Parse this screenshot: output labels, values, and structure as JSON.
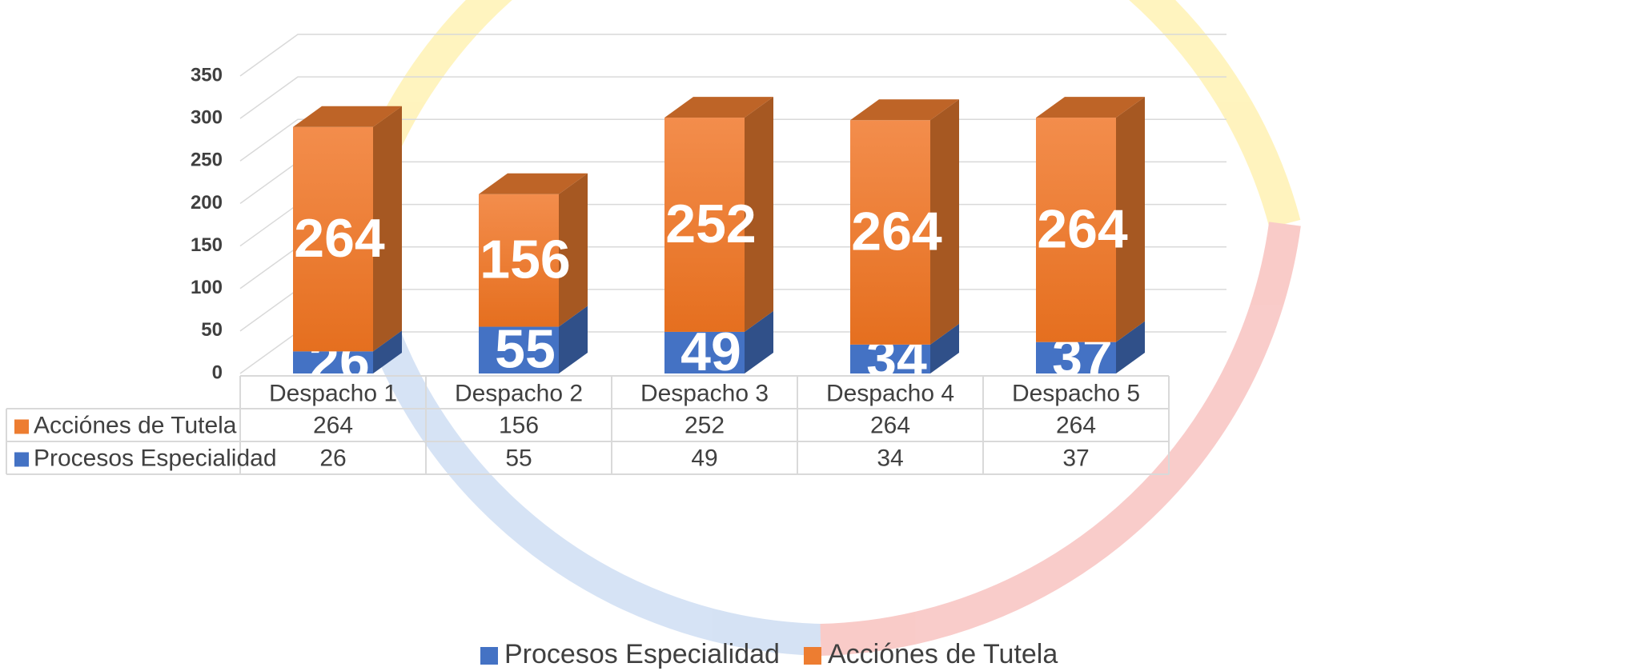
{
  "chart_data": {
    "type": "bar",
    "stacked": true,
    "categories": [
      "Despacho 1",
      "Despacho 2",
      "Despacho 3",
      "Despacho 4",
      "Despacho 5"
    ],
    "series": [
      {
        "name": "Procesos Especialidad",
        "color": "#4472c4",
        "values": [
          26,
          55,
          49,
          34,
          37
        ]
      },
      {
        "name": "Acciónes de Tutela",
        "color": "#ed7d31",
        "values": [
          264,
          156,
          252,
          264,
          264
        ]
      }
    ],
    "ylim": [
      0,
      350
    ],
    "yticks": [
      0,
      50,
      100,
      150,
      200,
      250,
      300,
      350
    ],
    "grid": true,
    "legend": "bottom",
    "data_table": true
  }
}
